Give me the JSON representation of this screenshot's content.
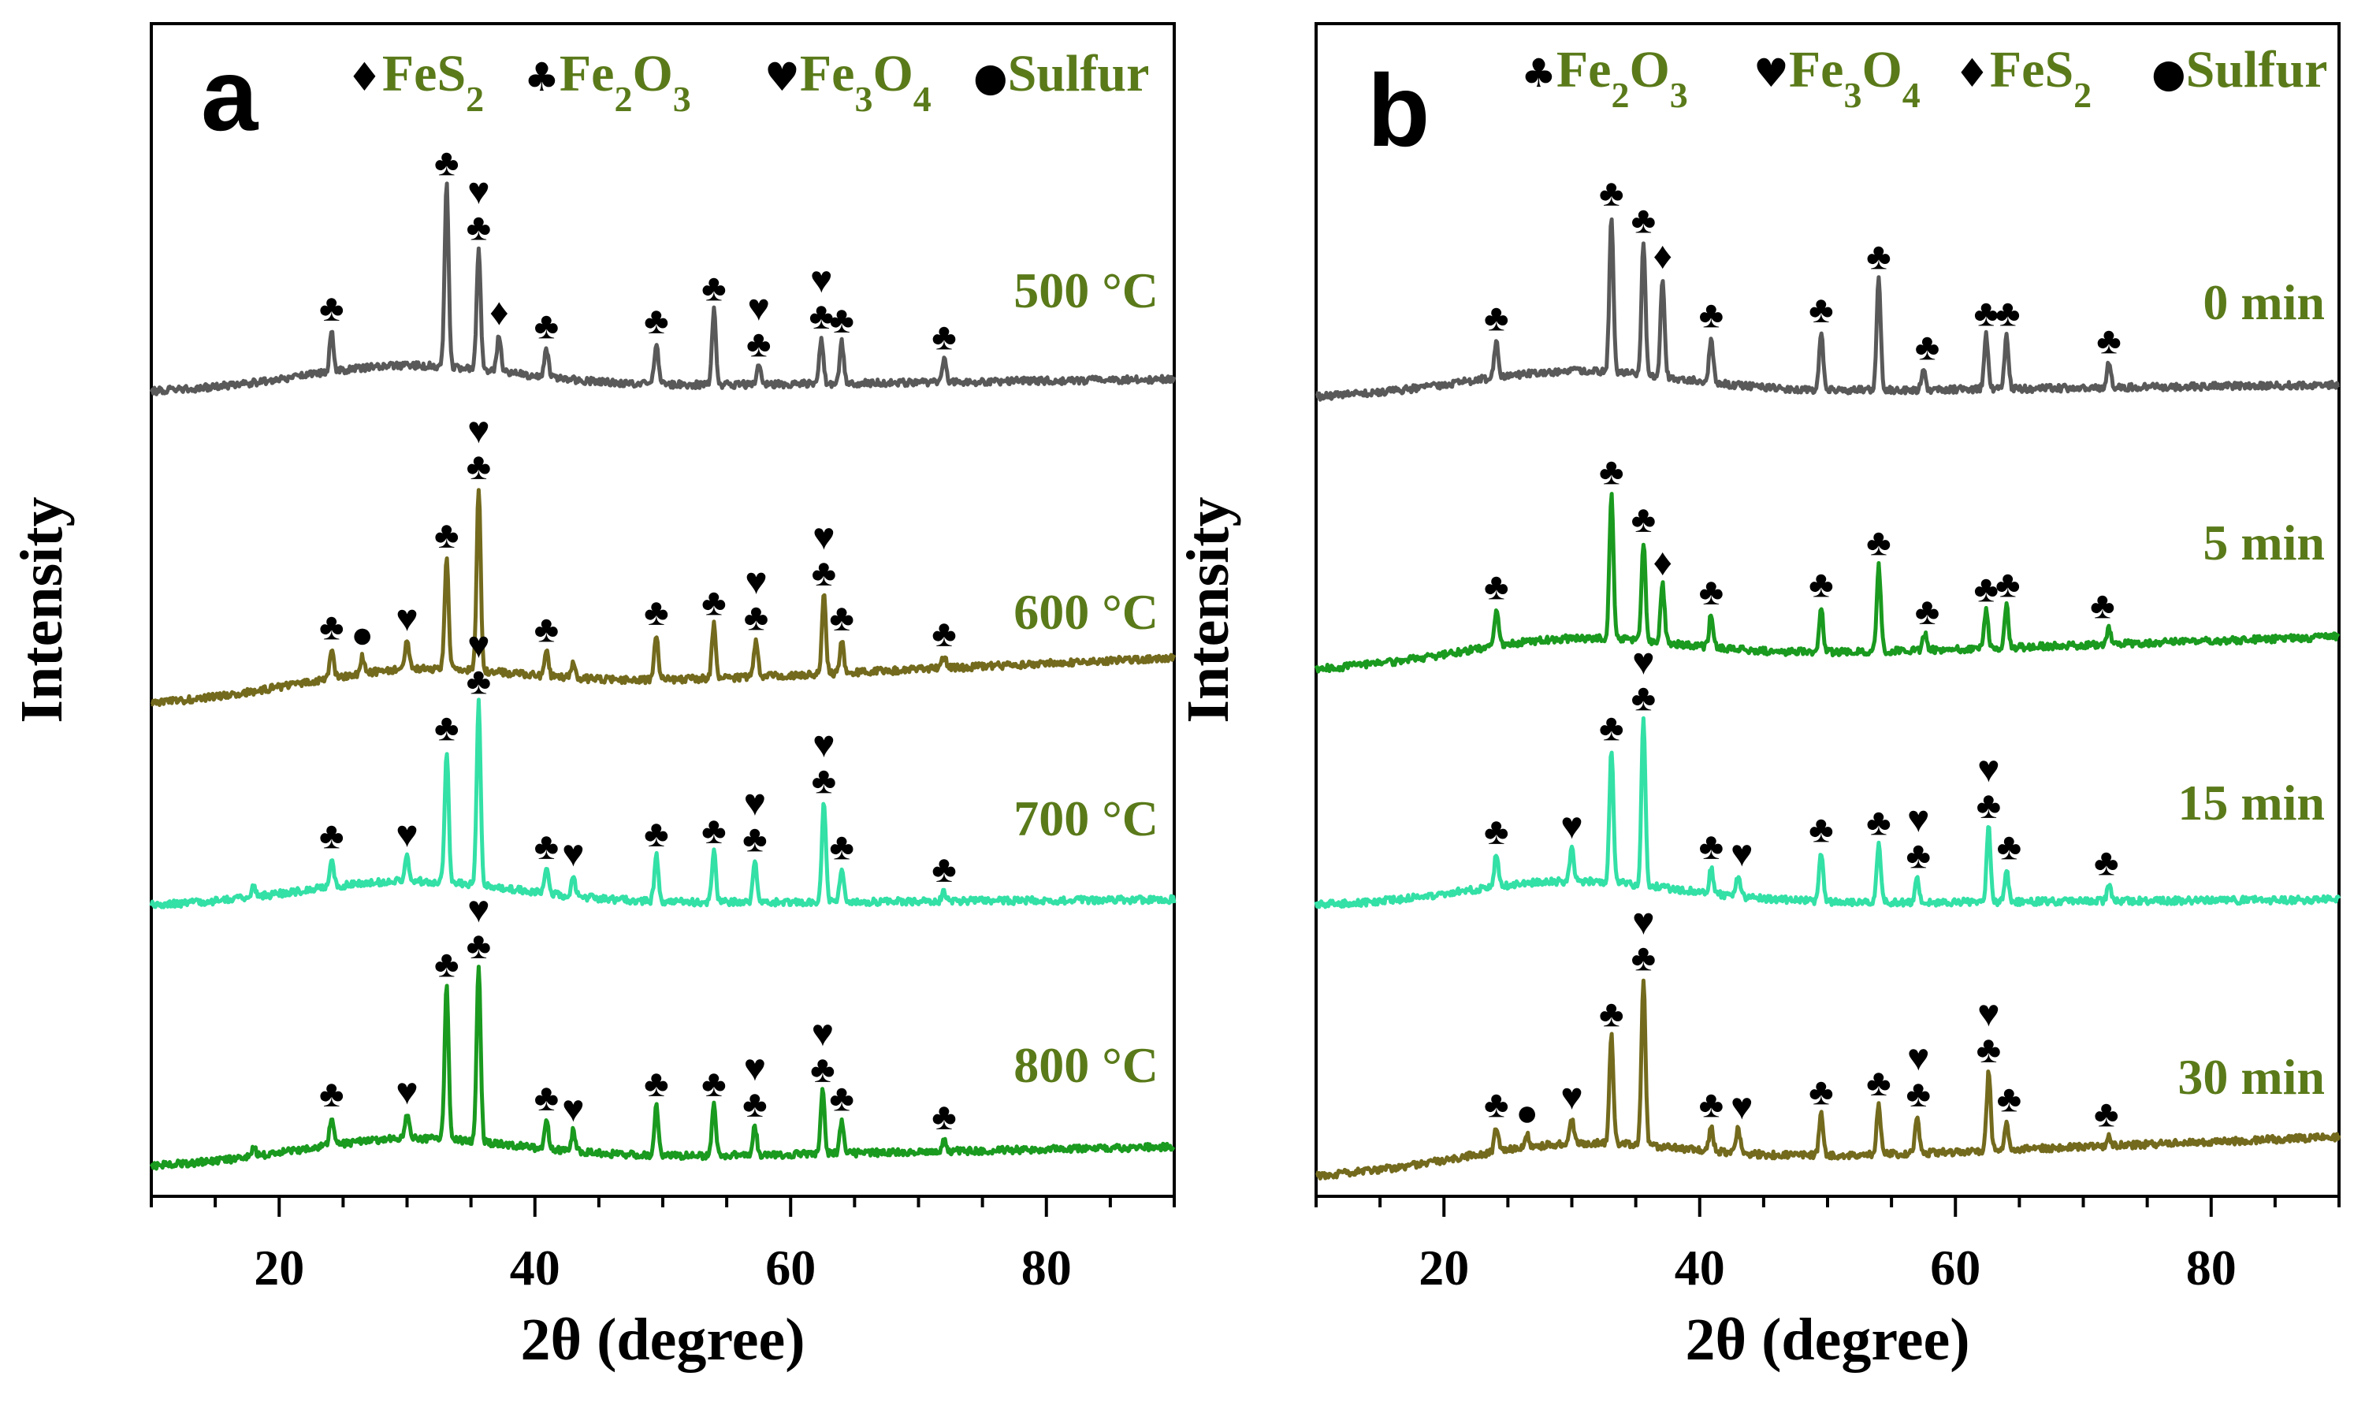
{
  "figure": {
    "colors": {
      "gray": "#595959",
      "olive": "#736a1d",
      "mint": "#33e0a6",
      "green": "#1a9a1f",
      "label": "#5a7a1a",
      "ink": "#000000"
    },
    "symbols": {
      "feS2": "♦",
      "fe2o3": "♣",
      "fe3o4": "♥",
      "sulfur": "●"
    }
  },
  "chart_data": [
    {
      "panel": "a",
      "type": "line",
      "xlabel": "2θ (degree)",
      "ylabel": "Intensity",
      "xlim": [
        10,
        90
      ],
      "xticks": [
        20,
        40,
        60,
        80
      ],
      "legend": [
        {
          "symbol": "♦",
          "base": "FeS",
          "sub": "2",
          "base2": "",
          "sub2": ""
        },
        {
          "symbol": "♣",
          "base": "Fe",
          "sub": "2",
          "base2": "O",
          "sub2": "3"
        },
        {
          "symbol": "♥",
          "base": "Fe",
          "sub": "3",
          "base2": "O",
          "sub2": "4"
        },
        {
          "symbol": "●",
          "base": "Sulfur",
          "sub": "",
          "base2": "",
          "sub2": ""
        }
      ],
      "series": [
        {
          "name": "500 °C",
          "color": "#595959",
          "baseline": {
            "start": 0.0,
            "end": 0.2
          },
          "peaks": [
            [
              24.1,
              0.5
            ],
            [
              33.1,
              2.2
            ],
            [
              35.6,
              1.45
            ],
            [
              37.2,
              0.45
            ],
            [
              40.9,
              0.35
            ],
            [
              49.5,
              0.5
            ],
            [
              54.0,
              0.9
            ],
            [
              57.5,
              0.22
            ],
            [
              62.4,
              0.55
            ],
            [
              64.0,
              0.5
            ],
            [
              72.0,
              0.28
            ]
          ],
          "markers": [
            [
              24.1,
              "♣"
            ],
            [
              33.1,
              "♣"
            ],
            [
              35.6,
              "♥♣"
            ],
            [
              37.2,
              "♦"
            ],
            [
              40.9,
              "♣"
            ],
            [
              49.5,
              "♣"
            ],
            [
              54.0,
              "♣"
            ],
            [
              57.5,
              "♥♣"
            ],
            [
              62.4,
              "♥♣"
            ],
            [
              64.0,
              "♣"
            ],
            [
              72.0,
              "♣"
            ]
          ]
        },
        {
          "name": "600 °C",
          "color": "#736a1d",
          "baseline": {
            "start": -0.4,
            "end": 0.3
          },
          "peaks": [
            [
              24.1,
              0.35
            ],
            [
              26.5,
              0.2
            ],
            [
              30.0,
              0.35
            ],
            [
              33.1,
              1.35
            ],
            [
              35.6,
              2.2
            ],
            [
              40.9,
              0.3
            ],
            [
              43.0,
              0.2
            ],
            [
              49.5,
              0.55
            ],
            [
              54.0,
              0.65
            ],
            [
              57.3,
              0.45
            ],
            [
              62.6,
              0.95
            ],
            [
              64.0,
              0.4
            ],
            [
              72.0,
              0.15
            ]
          ],
          "markers": [
            [
              24.1,
              "♣"
            ],
            [
              26.5,
              "●"
            ],
            [
              30.0,
              "♥"
            ],
            [
              33.1,
              "♣"
            ],
            [
              35.6,
              "♥♣"
            ],
            [
              40.9,
              "♣"
            ],
            [
              49.5,
              "♣"
            ],
            [
              54.0,
              "♣"
            ],
            [
              57.3,
              "♥♣"
            ],
            [
              62.6,
              "♥♣"
            ],
            [
              64.0,
              "♣"
            ],
            [
              72.0,
              "♣"
            ]
          ]
        },
        {
          "name": "700 °C",
          "color": "#33e0a6",
          "baseline": {
            "start": 0.0,
            "end": 0.1
          },
          "peaks": [
            [
              18.0,
              0.15
            ],
            [
              24.1,
              0.35
            ],
            [
              30.0,
              0.3
            ],
            [
              33.1,
              1.6
            ],
            [
              35.6,
              2.2
            ],
            [
              40.9,
              0.3
            ],
            [
              43.0,
              0.25
            ],
            [
              49.5,
              0.55
            ],
            [
              54.0,
              0.6
            ],
            [
              57.2,
              0.5
            ],
            [
              62.6,
              1.2
            ],
            [
              64.0,
              0.4
            ],
            [
              72.0,
              0.12
            ]
          ],
          "markers": [
            [
              24.1,
              "♣"
            ],
            [
              30.0,
              "♥"
            ],
            [
              33.1,
              "♣"
            ],
            [
              35.6,
              "♥♣"
            ],
            [
              40.9,
              "♣"
            ],
            [
              43.0,
              "♥"
            ],
            [
              49.5,
              "♣"
            ],
            [
              54.0,
              "♣"
            ],
            [
              57.2,
              "♥♣"
            ],
            [
              62.6,
              "♥♣"
            ],
            [
              64.0,
              "♣"
            ],
            [
              72.0,
              "♣"
            ]
          ]
        },
        {
          "name": "800 °C",
          "color": "#1a9a1f",
          "baseline": {
            "start": -0.15,
            "end": 0.15
          },
          "peaks": [
            [
              18.0,
              0.12
            ],
            [
              24.1,
              0.35
            ],
            [
              30.0,
              0.3
            ],
            [
              33.1,
              1.85
            ],
            [
              35.6,
              2.1
            ],
            [
              40.9,
              0.35
            ],
            [
              43.0,
              0.25
            ],
            [
              49.5,
              0.6
            ],
            [
              54.0,
              0.6
            ],
            [
              57.2,
              0.35
            ],
            [
              62.5,
              0.75
            ],
            [
              64.0,
              0.4
            ],
            [
              72.0,
              0.15
            ]
          ],
          "markers": [
            [
              24.1,
              "♣"
            ],
            [
              30.0,
              "♥"
            ],
            [
              33.1,
              "♣"
            ],
            [
              35.6,
              "♥♣"
            ],
            [
              40.9,
              "♣"
            ],
            [
              43.0,
              "♥"
            ],
            [
              49.5,
              "♣"
            ],
            [
              54.0,
              "♣"
            ],
            [
              57.2,
              "♥♣"
            ],
            [
              62.5,
              "♥♣"
            ],
            [
              64.0,
              "♣"
            ],
            [
              72.0,
              "♣"
            ]
          ]
        }
      ]
    },
    {
      "panel": "b",
      "type": "line",
      "xlabel": "2θ (degree)",
      "ylabel": "Intensity",
      "xlim": [
        10,
        90
      ],
      "xticks": [
        20,
        40,
        60,
        80
      ],
      "legend": [
        {
          "symbol": "♣",
          "base": "Fe",
          "sub": "2",
          "base2": "O",
          "sub2": "3"
        },
        {
          "symbol": "♥",
          "base": "Fe",
          "sub": "3",
          "base2": "O",
          "sub2": "4"
        },
        {
          "symbol": "♦",
          "base": "FeS",
          "sub": "2",
          "base2": "",
          "sub2": ""
        },
        {
          "symbol": "●",
          "base": "Sulfur",
          "sub": "",
          "base2": "",
          "sub2": ""
        }
      ],
      "series": [
        {
          "name": "0 min",
          "color": "#595959",
          "baseline": {
            "start": 0.0,
            "end": 0.2
          },
          "peaks": [
            [
              24.1,
              0.45
            ],
            [
              33.1,
              1.9
            ],
            [
              35.6,
              1.6
            ],
            [
              37.1,
              1.2
            ],
            [
              40.9,
              0.55
            ],
            [
              49.5,
              0.7
            ],
            [
              54.0,
              1.35
            ],
            [
              57.5,
              0.25
            ],
            [
              62.4,
              0.65
            ],
            [
              64.0,
              0.65
            ],
            [
              72.0,
              0.3
            ]
          ],
          "markers": [
            [
              24.1,
              "♣"
            ],
            [
              33.1,
              "♣"
            ],
            [
              35.6,
              "♣"
            ],
            [
              37.1,
              "♦"
            ],
            [
              40.9,
              "♣"
            ],
            [
              49.5,
              "♣"
            ],
            [
              54.0,
              "♣"
            ],
            [
              57.8,
              "♣"
            ],
            [
              62.4,
              "♣"
            ],
            [
              64.1,
              "♣"
            ],
            [
              72.0,
              "♣"
            ]
          ]
        },
        {
          "name": "5 min",
          "color": "#1a9a1f",
          "baseline": {
            "start": -0.3,
            "end": 0.2
          },
          "peaks": [
            [
              24.1,
              0.45
            ],
            [
              33.1,
              1.75
            ],
            [
              35.6,
              1.2
            ],
            [
              37.1,
              0.7
            ],
            [
              40.9,
              0.4
            ],
            [
              49.5,
              0.55
            ],
            [
              54.0,
              1.05
            ],
            [
              57.6,
              0.2
            ],
            [
              62.4,
              0.45
            ],
            [
              64.0,
              0.5
            ],
            [
              72.0,
              0.2
            ]
          ],
          "markers": [
            [
              24.1,
              "♣"
            ],
            [
              33.1,
              "♣"
            ],
            [
              35.6,
              "♣"
            ],
            [
              37.1,
              "♦"
            ],
            [
              40.9,
              "♣"
            ],
            [
              49.5,
              "♣"
            ],
            [
              54.0,
              "♣"
            ],
            [
              57.8,
              "♣"
            ],
            [
              62.4,
              "♣"
            ],
            [
              64.1,
              "♣"
            ],
            [
              71.5,
              "♣"
            ]
          ]
        },
        {
          "name": "15 min",
          "color": "#33e0a6",
          "baseline": {
            "start": 0.0,
            "end": 0.1
          },
          "peaks": [
            [
              24.1,
              0.4
            ],
            [
              30.0,
              0.4
            ],
            [
              33.1,
              1.6
            ],
            [
              35.6,
              2.0
            ],
            [
              40.9,
              0.3
            ],
            [
              43.0,
              0.25
            ],
            [
              49.5,
              0.6
            ],
            [
              54.0,
              0.7
            ],
            [
              57.0,
              0.3
            ],
            [
              62.6,
              0.9
            ],
            [
              64.0,
              0.4
            ],
            [
              72.0,
              0.2
            ]
          ],
          "markers": [
            [
              24.1,
              "♣"
            ],
            [
              30.0,
              "♥"
            ],
            [
              33.1,
              "♣"
            ],
            [
              35.6,
              "♥♣"
            ],
            [
              40.9,
              "♣"
            ],
            [
              43.3,
              "♥"
            ],
            [
              49.5,
              "♣"
            ],
            [
              54.0,
              "♣"
            ],
            [
              57.1,
              "♥♣"
            ],
            [
              62.6,
              "♥♣"
            ],
            [
              64.2,
              "♣"
            ],
            [
              71.8,
              "♣"
            ]
          ]
        },
        {
          "name": "30 min",
          "color": "#736a1d",
          "baseline": {
            "start": -0.3,
            "end": 0.3
          },
          "peaks": [
            [
              24.1,
              0.3
            ],
            [
              26.5,
              0.15
            ],
            [
              30.0,
              0.3
            ],
            [
              33.1,
              1.3
            ],
            [
              35.6,
              2.0
            ],
            [
              40.9,
              0.3
            ],
            [
              43.0,
              0.3
            ],
            [
              49.5,
              0.5
            ],
            [
              54.0,
              0.6
            ],
            [
              57.0,
              0.45
            ],
            [
              62.6,
              0.95
            ],
            [
              64.0,
              0.35
            ],
            [
              72.0,
              0.12
            ]
          ],
          "markers": [
            [
              24.1,
              "♣"
            ],
            [
              26.5,
              "●"
            ],
            [
              30.0,
              "♥"
            ],
            [
              33.1,
              "♣"
            ],
            [
              35.6,
              "♥♣"
            ],
            [
              40.9,
              "♣"
            ],
            [
              43.3,
              "♥"
            ],
            [
              49.5,
              "♣"
            ],
            [
              54.0,
              "♣"
            ],
            [
              57.1,
              "♥♣"
            ],
            [
              62.6,
              "♥♣"
            ],
            [
              64.2,
              "♣"
            ],
            [
              71.8,
              "♣"
            ]
          ]
        }
      ]
    }
  ]
}
